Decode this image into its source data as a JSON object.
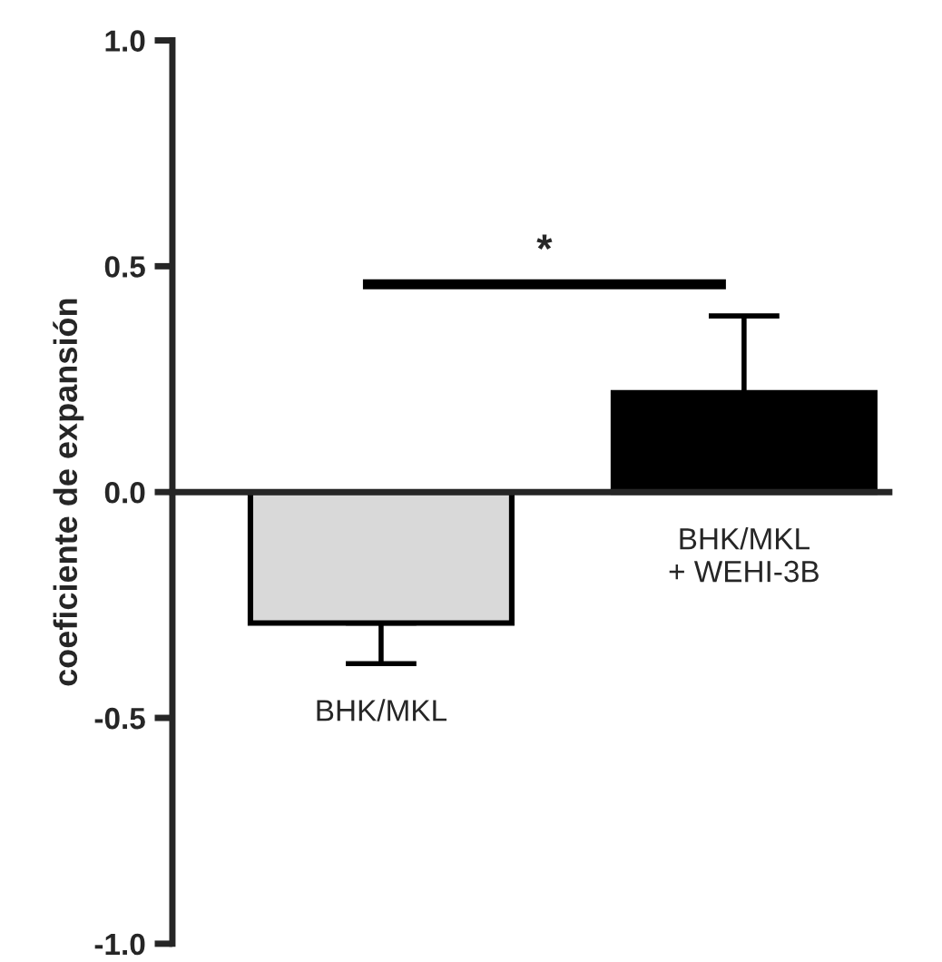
{
  "chart_data": {
    "type": "bar",
    "ylabel": "coeficiente de expansión",
    "categories": [
      "BHK/MKL",
      "BHK/MKL\n+ WEHI-3B"
    ],
    "values": [
      -0.29,
      0.22
    ],
    "colors": [
      "#d9d9d9",
      "#000000"
    ],
    "errors": [
      [
        -0.38,
        -0.29
      ],
      [
        0.22,
        0.39
      ]
    ],
    "ylim": [
      -1.0,
      1.0
    ],
    "yticks": [
      {
        "value": -1.0,
        "label": "-1.0"
      },
      {
        "value": -0.5,
        "label": "-0.5"
      },
      {
        "value": 0.0,
        "label": "0.0"
      },
      {
        "value": 0.5,
        "label": "0.5"
      },
      {
        "value": 1.0,
        "label": "1.0"
      }
    ],
    "annotations": [
      "*"
    ]
  }
}
